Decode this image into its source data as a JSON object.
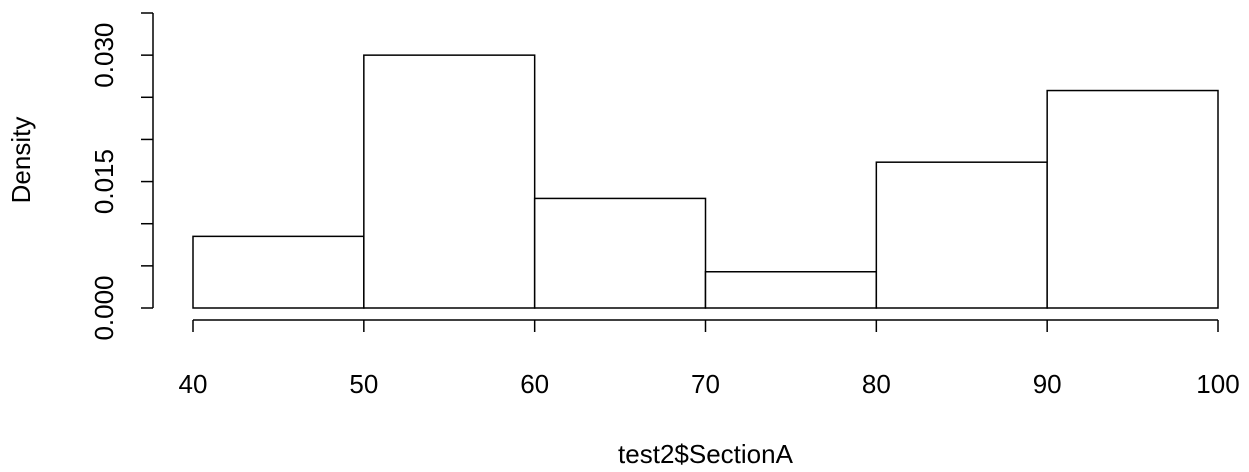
{
  "chart_data": {
    "type": "bar",
    "title": "",
    "xlabel": "test2$SectionA",
    "ylabel": "Density",
    "bins": [
      {
        "start": 40,
        "end": 50,
        "density": 0.0085
      },
      {
        "start": 50,
        "end": 60,
        "density": 0.03
      },
      {
        "start": 60,
        "end": 70,
        "density": 0.013
      },
      {
        "start": 70,
        "end": 80,
        "density": 0.0043
      },
      {
        "start": 80,
        "end": 90,
        "density": 0.0173
      },
      {
        "start": 90,
        "end": 100,
        "density": 0.0258
      }
    ],
    "xlim": [
      40,
      100
    ],
    "ylim": [
      0,
      0.035
    ],
    "x_ticks": [
      "40",
      "50",
      "60",
      "70",
      "80",
      "90",
      "100"
    ],
    "y_ticks": [
      0,
      0.005,
      0.01,
      0.015,
      0.02,
      0.025,
      0.03,
      0.035
    ],
    "y_tick_labels": [
      {
        "value": 0,
        "label": "0.000"
      },
      {
        "value": 0.015,
        "label": "0.015"
      },
      {
        "value": 0.03,
        "label": "0.030"
      }
    ],
    "grid": false,
    "colors": {
      "bar_fill": "#ffffff",
      "bar_stroke": "#000000",
      "axis": "#000000"
    }
  }
}
